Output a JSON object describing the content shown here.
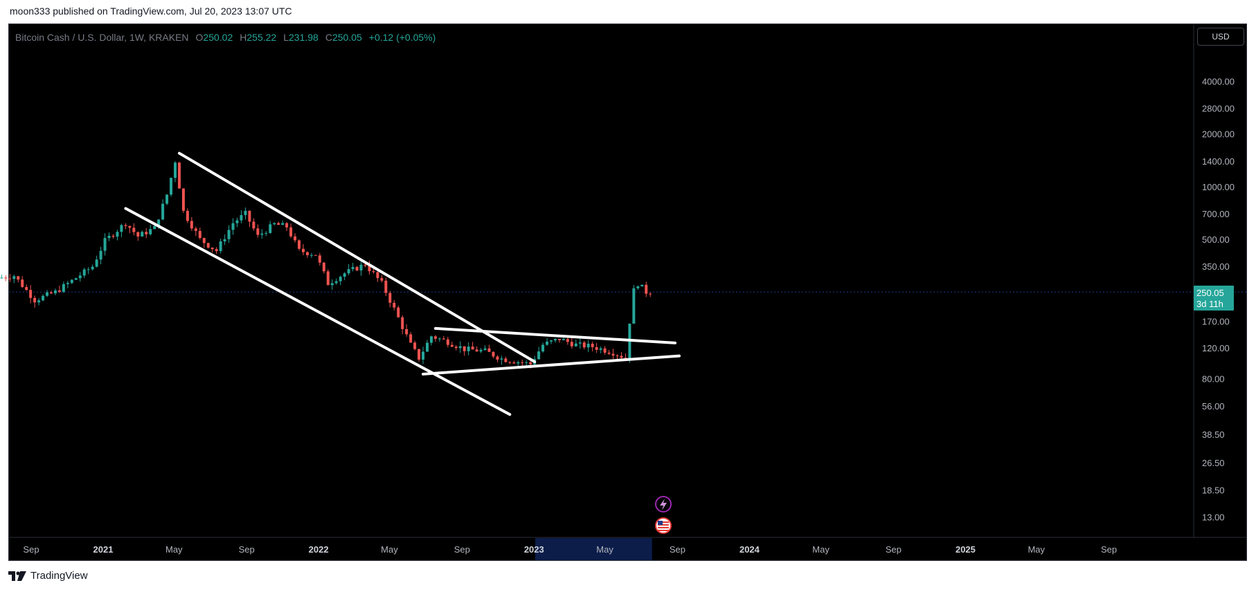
{
  "publisher_line": "moon333 published on TradingView.com, Jul 20, 2023 13:07 UTC",
  "footer": {
    "brand": "TradingView"
  },
  "currency_button": "USD",
  "legend": {
    "symbol": "Bitcoin Cash / U.S. Dollar, 1W, KRAKEN",
    "o_key": "O",
    "o_val": "250.02",
    "h_key": "H",
    "h_val": "255.22",
    "l_key": "L",
    "l_val": "231.98",
    "c_key": "C",
    "c_val": "250.05",
    "change": "+0.12 (+0.05%)"
  },
  "price_label": {
    "price": "250.05",
    "countdown": "3d 11h"
  },
  "icons": [
    "lightning-icon",
    "us-flag-icon"
  ],
  "colors": {
    "up": "#26a69a",
    "down": "#ef5350",
    "background": "#000000",
    "trendline": "#ffffff",
    "highlight": "#0c1d4a"
  },
  "chart_data": {
    "type": "candlestick",
    "scale": "log",
    "y_ticks": [
      "4000.00",
      "2800.00",
      "2000.00",
      "1400.00",
      "1000.00",
      "700.00",
      "500.00",
      "350.00",
      "170.00",
      "120.00",
      "80.00",
      "56.00",
      "38.50",
      "26.50",
      "18.50",
      "13.00"
    ],
    "x_ticks": [
      {
        "label": "Sep",
        "date": "2020-09-01",
        "bold": false
      },
      {
        "label": "2021",
        "date": "2021-01-01",
        "bold": true
      },
      {
        "label": "May",
        "date": "2021-05-01",
        "bold": false
      },
      {
        "label": "Sep",
        "date": "2021-09-01",
        "bold": false
      },
      {
        "label": "2022",
        "date": "2022-01-01",
        "bold": true
      },
      {
        "label": "May",
        "date": "2022-05-01",
        "bold": false
      },
      {
        "label": "Sep",
        "date": "2022-09-01",
        "bold": false
      },
      {
        "label": "2023",
        "date": "2023-01-01",
        "bold": true
      },
      {
        "label": "May",
        "date": "2023-05-01",
        "bold": false
      },
      {
        "label": "Sep",
        "date": "2023-09-01",
        "bold": false
      },
      {
        "label": "2024",
        "date": "2024-01-01",
        "bold": true
      },
      {
        "label": "May",
        "date": "2024-05-01",
        "bold": false
      },
      {
        "label": "Sep",
        "date": "2024-09-01",
        "bold": false
      },
      {
        "label": "2025",
        "date": "2025-01-01",
        "bold": true
      },
      {
        "label": "May",
        "date": "2025-05-01",
        "bold": false
      },
      {
        "label": "Sep",
        "date": "2025-09-01",
        "bold": false
      }
    ],
    "highlight_range": [
      "2023-01-03",
      "2023-07-20"
    ],
    "last_price": 250.05,
    "trendlines": [
      {
        "from": {
          "date": "2021-05-10",
          "price": 1550
        },
        "to": {
          "date": "2023-01-02",
          "price": 100
        }
      },
      {
        "from": {
          "date": "2021-02-08",
          "price": 750
        },
        "to": {
          "date": "2022-11-21",
          "price": 50
        }
      },
      {
        "from": {
          "date": "2022-07-18",
          "price": 155
        },
        "to": {
          "date": "2023-08-28",
          "price": 128
        }
      },
      {
        "from": {
          "date": "2022-06-27",
          "price": 85
        },
        "to": {
          "date": "2023-09-04",
          "price": 108
        }
      }
    ],
    "anchors": [
      [
        "2020-07-13",
        300
      ],
      [
        "2020-08-10",
        310
      ],
      [
        "2020-09-14",
        225
      ],
      [
        "2020-10-19",
        250
      ],
      [
        "2020-11-16",
        290
      ],
      [
        "2020-12-21",
        350
      ],
      [
        "2021-01-11",
        490
      ],
      [
        "2021-02-15",
        620
      ],
      [
        "2021-03-08",
        520
      ],
      [
        "2021-04-05",
        580
      ],
      [
        "2021-04-26",
        900
      ],
      [
        "2021-05-10",
        1400
      ],
      [
        "2021-05-24",
        720
      ],
      [
        "2021-06-21",
        500
      ],
      [
        "2021-07-19",
        430
      ],
      [
        "2021-08-16",
        620
      ],
      [
        "2021-09-06",
        700
      ],
      [
        "2021-09-27",
        520
      ],
      [
        "2021-10-25",
        610
      ],
      [
        "2021-11-15",
        590
      ],
      [
        "2021-12-06",
        430
      ],
      [
        "2022-01-03",
        410
      ],
      [
        "2022-01-24",
        280
      ],
      [
        "2022-02-21",
        320
      ],
      [
        "2022-03-28",
        360
      ],
      [
        "2022-04-25",
        280
      ],
      [
        "2022-05-16",
        200
      ],
      [
        "2022-06-13",
        125
      ],
      [
        "2022-06-27",
        105
      ],
      [
        "2022-07-18",
        140
      ],
      [
        "2022-08-15",
        130
      ],
      [
        "2022-09-12",
        118
      ],
      [
        "2022-10-17",
        115
      ],
      [
        "2022-11-14",
        104
      ],
      [
        "2022-12-12",
        100
      ],
      [
        "2023-01-02",
        97
      ],
      [
        "2023-01-23",
        125
      ],
      [
        "2023-02-20",
        135
      ],
      [
        "2023-03-20",
        125
      ],
      [
        "2023-04-17",
        122
      ],
      [
        "2023-05-22",
        113
      ],
      [
        "2023-06-12",
        105
      ],
      [
        "2023-06-19",
        170
      ],
      [
        "2023-06-26",
        255
      ],
      [
        "2023-07-03",
        280
      ],
      [
        "2023-07-17",
        250
      ]
    ]
  }
}
